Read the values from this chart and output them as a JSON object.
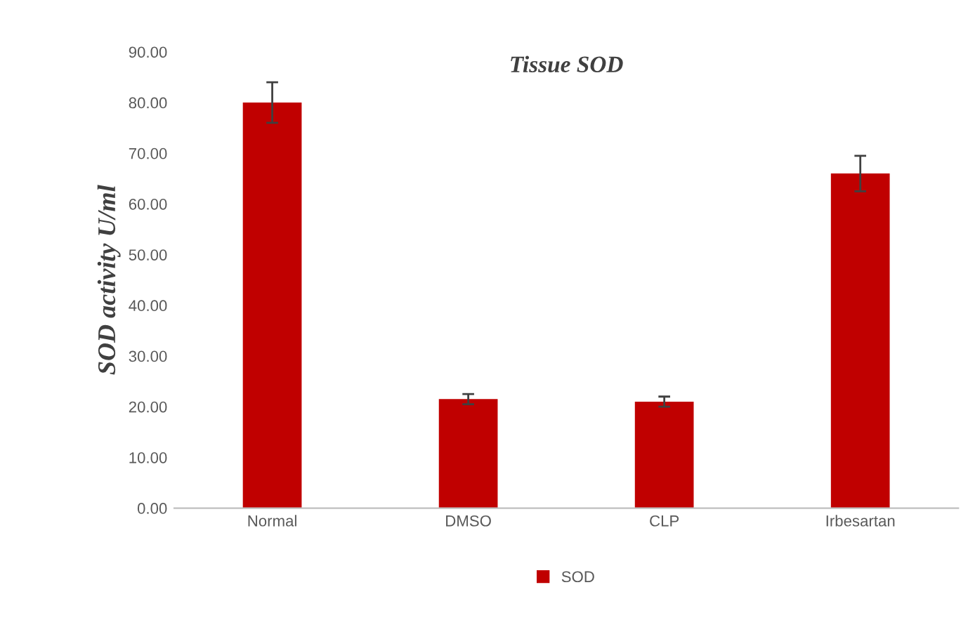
{
  "chart_data": {
    "type": "bar",
    "title": "Tissue SOD",
    "ylabel": "SOD activity U/ml",
    "categories": [
      "Normal",
      "DMSO",
      "CLP",
      "Irbesartan"
    ],
    "series": [
      {
        "name": "SOD",
        "color": "#c00000",
        "values": [
          80.0,
          21.5,
          21.0,
          66.0
        ],
        "errors": [
          4.0,
          1.0,
          1.0,
          3.5
        ]
      }
    ],
    "ylim": [
      0,
      90
    ],
    "yticks": [
      {
        "value": 0,
        "label": "0.00"
      },
      {
        "value": 10,
        "label": "10.00"
      },
      {
        "value": 20,
        "label": "20.00"
      },
      {
        "value": 30,
        "label": "30.00"
      },
      {
        "value": 40,
        "label": "40.00"
      },
      {
        "value": 50,
        "label": "50.00"
      },
      {
        "value": 60,
        "label": "60.00"
      },
      {
        "value": 70,
        "label": "70.00"
      },
      {
        "value": 80,
        "label": "80.00"
      },
      {
        "value": 90,
        "label": "90.00"
      }
    ],
    "grid": false,
    "legend": "bottom"
  }
}
